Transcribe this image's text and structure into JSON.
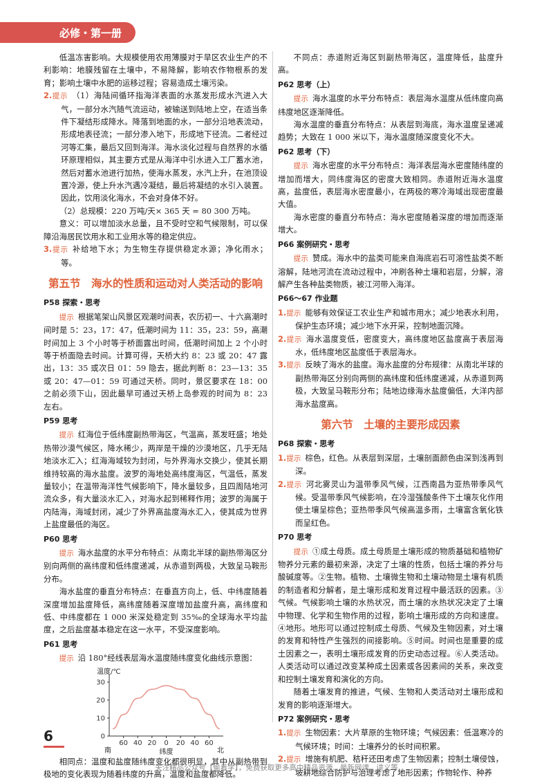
{
  "header": {
    "book": "必修・第一册"
  },
  "left": {
    "p0": "低温冻害影响。大规模使用农用薄膜对于旱区农业生产的不利影响：地膜残留在土壤中，不易降解，影响农作物根系的发育；影响土壤中水肥的运移过程；容易造成土壤污染。",
    "q2_num": "2.",
    "q2_tip": "提示",
    "q2_a": "（1）海陆间循环指海洋表面的水蒸发形成水汽进入大气，一部分水汽随气流运动，被输送到陆地上空，在适当条件下凝结形成降水。降落到地面的水，一部分沿地表流动，形成地表径流；一部分渗入地下，形成地下径流。二者经过河等汇集，最后又回到海洋。海水淡化过程与自然界的水循环原理相似，其主要方式是从海洋中引水进入工厂蓄水池，然后对蓄水池进行加热，使海水蒸发，水汽上升，在池顶设置冷源，使上升水汽遇冷凝结，最后将凝结的水引入装置。因此，饮用淡化海水，不会对身体不好。",
    "q2_b": "（2）总规模：220 万吨/天× 365 天 = 80 300 万吨。",
    "q2_c": "意义：可以增加淡水总量，且不受时空和气候限制，可以保障沿海居民饮用水和工业用水等的稳定供应。",
    "q3_num": "3.",
    "q3_tip": "提示",
    "q3": "补给地下水；为生物生存提供稳定水源；净化雨水；等。",
    "sec5": "第五节　海水的性质和运动对人类活动的影响",
    "p58_title": "P58 探索・思考",
    "p58_tip": "提示",
    "p58": "根据笔架山风景区观潮时间表，农历初一、十六高潮时间时是 5：23，17：47，低潮时间为 11：35，23：59，高潮时间加上 3 个小时等于桥面露出时间，低潮时间加上 2 个小时等于桥面隐去时间。计算可得，天桥大约 8：23 或 20：47 露出，13：35 或次日 01：59 隐去，据此判断 8：23—13：35 或 20：47—01：59 可通过天桥。同时，景区要求在 18：00 之前必须下山，因此最早可通过天桥上岛参观的时间为 8：23 左右。",
    "p59_title": "P59 思考",
    "p59_tip": "提示",
    "p59": "红海位于低纬度副热带海区，气温高，蒸发旺盛；地处热带沙漠气候区，降水稀少，两岸是干燥的沙漠地区，几乎无陆地淡水汇入；红海海域较为封闭，与外界海水交换少，使其长期维持较高的海水盐度。波罗的海地处高纬度海区，气温低，蒸发量较小；在温带海洋性气候影响下，降水量较多，且四周陆地河流众多，有大量淡水汇入，对海水起到稀释作用；波罗的海属于内陆海，海域封闭，减少了外界高盐度海水汇入，使其成为世界上盐度最低的海区。",
    "p60_title": "P60 思考",
    "p60_tip": "提示",
    "p60_a": "海水盐度的水平分布特点：从南北半球的副热带海区分别向两侧的高纬度和低纬度递减，从赤道到两极，大致呈马鞍形分布。",
    "p60_b": "海水盐度的垂直分布特点：在垂直方向上，低、中纬度随着深度增加盐度降低，高纬度随着深度增加盐度升高，高纬度和低、中纬度都在 1 000 米深处稳定到 35‰的全球海水平均盐度，之后盐度基本稳定在这一水平，不受深度影响。",
    "p61_title": "P61 思考",
    "p61_tip": "提示",
    "p61": "沿 180°经线表层海水温度随纬度变化曲线示意图：",
    "p61_after": "相同点：温度和盐度随纬度变化都很明显，其中从副热带到极地的变化表现为随着纬度的升高，温度和盐度都降低。"
  },
  "right": {
    "r0": "不同点：赤道附近海区到副热带海区，温度降低，盐度升高。",
    "p62a_title": "P62 思考（上）",
    "p62a_tip": "提示",
    "p62a_1": "海水温度的水平分布特点：表层海水温度从低纬度向高纬度地区逐渐降低。",
    "p62a_2": "海水温度的垂直分布特点：从表层到海底，海水温度呈递减趋势；大致在 1 000 米以下，海水温度随深度变化不大。",
    "p62b_title": "P62 思考（下）",
    "p62b_tip": "提示",
    "p62b_1": "海水密度的水平分布特点：海洋表层海水密度随纬度的增加而增大，同纬度海区的密度大致相同。赤道附近海水温度高，盐度低，表层海水密度最小，在两极的寒冷海域出现密度最大值。",
    "p62b_2": "海水密度的垂直分布特点：海水密度随着深度的增加而逐渐增大。",
    "p66_title": "P66 案例研究・思考",
    "p66_tip": "提示",
    "p66": "赞成。海水中的盐类可能来自海底岩石可溶性盐类不断溶解，陆地河流在流动过程中，冲刷各种土壤和岩层，分解，溶解产生各种盐类物质，被江河带入海洋。",
    "hw_title": "P66～67 作业题",
    "hw1_num": "1.",
    "hw1_tip": "提示",
    "hw1": "能够有效保证工农业生产和城市用水；减少地表水利用，保护生态环境；减少地下水开采，控制地面沉降。",
    "hw2_num": "2.",
    "hw2_tip": "提示",
    "hw2": "海水温度变低，密度变大，高纬度地区盐度高于表层海水，低纬度地区盐度低于表层海水。",
    "hw3_num": "3.",
    "hw3_tip": "提示",
    "hw3": "反映了海水的盐度。海水盐度的分布规律：从南北半球的副热带海区分别向两侧的高纬度和低纬度递减，从赤道到两极，大致呈马鞍形分布；陆地边缘海水盐度偏低，大洋内部海水盐度高。",
    "sec6": "第六节　土壤的主要形成因素",
    "p68_title": "P68 探索・思考",
    "p68_1_num": "1.",
    "p68_1_tip": "提示",
    "p68_1": "棕色，红色。从表层到深层，土壤剖面颜色由深到浅再到深。",
    "p68_2_num": "2.",
    "p68_2_tip": "提示",
    "p68_2": "河北雾灵山为温带季风气候，江西南昌为亚热带季风气候。受温带季风气候影响，在冷湿强酸条件下土壤灰化作用使土壤呈棕色；亚热带季风气候高温多雨，土壤富含氧化铁而呈红色。",
    "p70_title": "P70 思考",
    "p70_tip": "提示",
    "p70_a": "①成土母质。成土母质是土壤形成的物质基础和植物矿物养分元素的最初来源，决定了土壤的性质，包括土壤的养分与酸碱度等。②生物。植物、土壤微生物和土壤动物是土壤有机质的制造者和分解者，是土壤形成和发育过程中最活跃的因素。③气候。气候影响土壤的水热状况，而土壤的水热状况决定了土壤中物理、化学和生物作用的过程，影响土壤形成的方向和速度。④地形。地形可以通过控制成土母质、气候及生物因素，对土壤的发育和特性产生强烈的间接影响。⑤时间。时间也是重要的成土因素之一，表明土壤形成发育的历史动态过程。⑥人类活动。人类活动可以通过改变某种成土因素或各因素间的关系，来改变和控制土壤发育和演化的方向。",
    "p70_b": "随着土壤发育的推进，气候、生物和人类活动对土壤形成和发育的影响逐渐增大。",
    "p72_title": "P72 案例研究・思考",
    "p72_1_num": "1.",
    "p72_1_tip": "提示",
    "p72_1": "生物因素：大片草原的生物环境；气候因素：低温寒冷的气候环境；时间：土壤养分的长时间积累。",
    "p72_2_num": "2.",
    "p72_2_tip": "提示",
    "p72_2": "增施有机肥、秸秆还田考虑了生物因素；控制土壤侵蚀，坡耕地综合防护与治理考虑了地形因素；作物轮作、种养"
  },
  "footer": {
    "page": "6",
    "note": "关注精品公众号【偷着学】，免费获取更多高中精品资源、最新网课、讲义等"
  },
  "chart_data": {
    "type": "line",
    "title": "",
    "ylabel": "温度/℃",
    "xlabel": "纬度",
    "x_ticks": [
      "60",
      "40",
      "20",
      "0",
      "20",
      "40",
      "60"
    ],
    "x_end_labels": [
      "南",
      "北"
    ],
    "y_ticks": [
      0,
      10,
      20,
      30
    ],
    "ylim": [
      0,
      30
    ],
    "xlim": [
      -80,
      80
    ],
    "x": [
      -75,
      -60,
      -40,
      -20,
      0,
      20,
      40,
      60,
      75
    ],
    "y": [
      4,
      12,
      21,
      26,
      28,
      26,
      21,
      12,
      4
    ]
  }
}
